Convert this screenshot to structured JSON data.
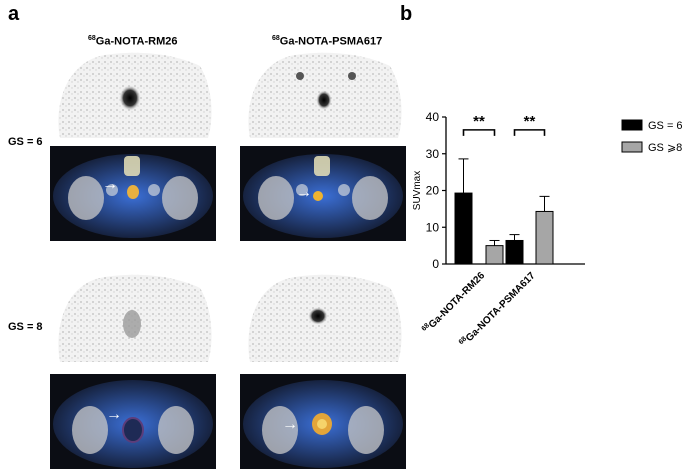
{
  "panels": {
    "a": "a",
    "b": "b"
  },
  "columns": [
    {
      "sup": "68",
      "name": "Ga-NOTA-RM26"
    },
    {
      "sup": "68",
      "name": "Ga-NOTA-PSMA617"
    }
  ],
  "rows": [
    {
      "label": "GS = 6"
    },
    {
      "label": "GS = 8"
    }
  ],
  "arrow_glyph": "→",
  "chart_data": {
    "type": "bar",
    "categories": [
      {
        "sup": "68",
        "name": "Ga-NOTA-RM26"
      },
      {
        "sup": "68",
        "name": "Ga-NOTA-PSMA617"
      }
    ],
    "series": [
      {
        "name": "GS = 6",
        "color": "#000000",
        "values": [
          19.3,
          6.4
        ],
        "errors": [
          9.3,
          1.6
        ]
      },
      {
        "name": "GS ⩾8",
        "color": "#a6a6a6",
        "values": [
          5.0,
          14.3
        ],
        "errors": [
          1.4,
          4.1
        ]
      }
    ],
    "ylabel": "SUVmax",
    "ylim": [
      0,
      40
    ],
    "yticks": [
      0,
      10,
      20,
      30,
      40
    ],
    "significance": [
      "**",
      "**"
    ],
    "legend_position": "top-right",
    "grid": false
  }
}
